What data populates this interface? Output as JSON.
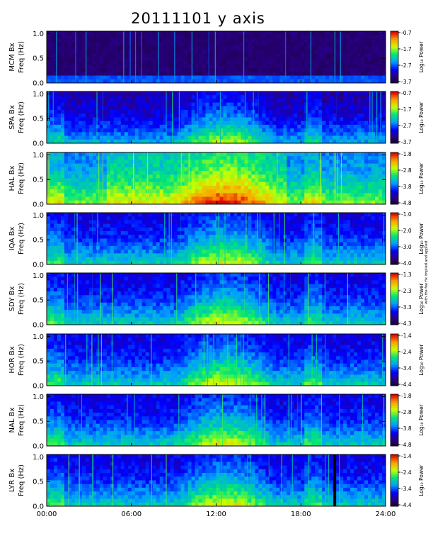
{
  "chart_data": {
    "type": "heatmap",
    "title": "20111101  y axis",
    "x_ticks": [
      "00:00",
      "06:00",
      "12:00",
      "18:00",
      "24:00"
    ],
    "x_range_hours": [
      0,
      24
    ],
    "y_ticks": [
      "0.0",
      "0.5",
      "1.0"
    ],
    "y_range_hz": [
      0,
      1.05
    ],
    "colorbar_label": "Log₁₀ Power",
    "side_note": "with the fee fix implied and applied",
    "panels": [
      {
        "station": "MCM Bx",
        "ylabel": "Freq (Hz)",
        "cb_ticks": [
          "-0.7",
          "-1.7",
          "-2.7",
          "-3.7"
        ],
        "activity": "low"
      },
      {
        "station": "SPA Bx",
        "ylabel": "Freq (Hz)",
        "cb_ticks": [
          "-0.7",
          "-1.7",
          "-2.7",
          "-3.7"
        ],
        "activity": "low-mid"
      },
      {
        "station": "HAL Bx",
        "ylabel": "Freq (Hz)",
        "cb_ticks": [
          "-1.8",
          "-2.8",
          "-3.8",
          "-4.8"
        ],
        "activity": "high"
      },
      {
        "station": "IQA Bx",
        "ylabel": "Freq (Hz)",
        "cb_ticks": [
          "-1.0",
          "-2.0",
          "-3.0",
          "-4.0"
        ],
        "activity": "mid"
      },
      {
        "station": "SDY Bx",
        "ylabel": "Freq (Hz)",
        "cb_ticks": [
          "-1.3",
          "-2.3",
          "-3.3",
          "-4.3"
        ],
        "activity": "mid"
      },
      {
        "station": "HOR Bx",
        "ylabel": "Freq (Hz)",
        "cb_ticks": [
          "-1.4",
          "-2.4",
          "-3.4",
          "-4.4"
        ],
        "activity": "mid"
      },
      {
        "station": "NAL Bx",
        "ylabel": "Freq (Hz)",
        "cb_ticks": [
          "-1.8",
          "-2.8",
          "-3.8",
          "-4.8"
        ],
        "activity": "mid"
      },
      {
        "station": "LYR Bx",
        "ylabel": "Freq (Hz)",
        "cb_ticks": [
          "-1.4",
          "-2.4",
          "-3.4",
          "-4.4"
        ],
        "activity": "mid",
        "data_gap_hours": [
          20.3,
          20.5
        ]
      }
    ]
  }
}
